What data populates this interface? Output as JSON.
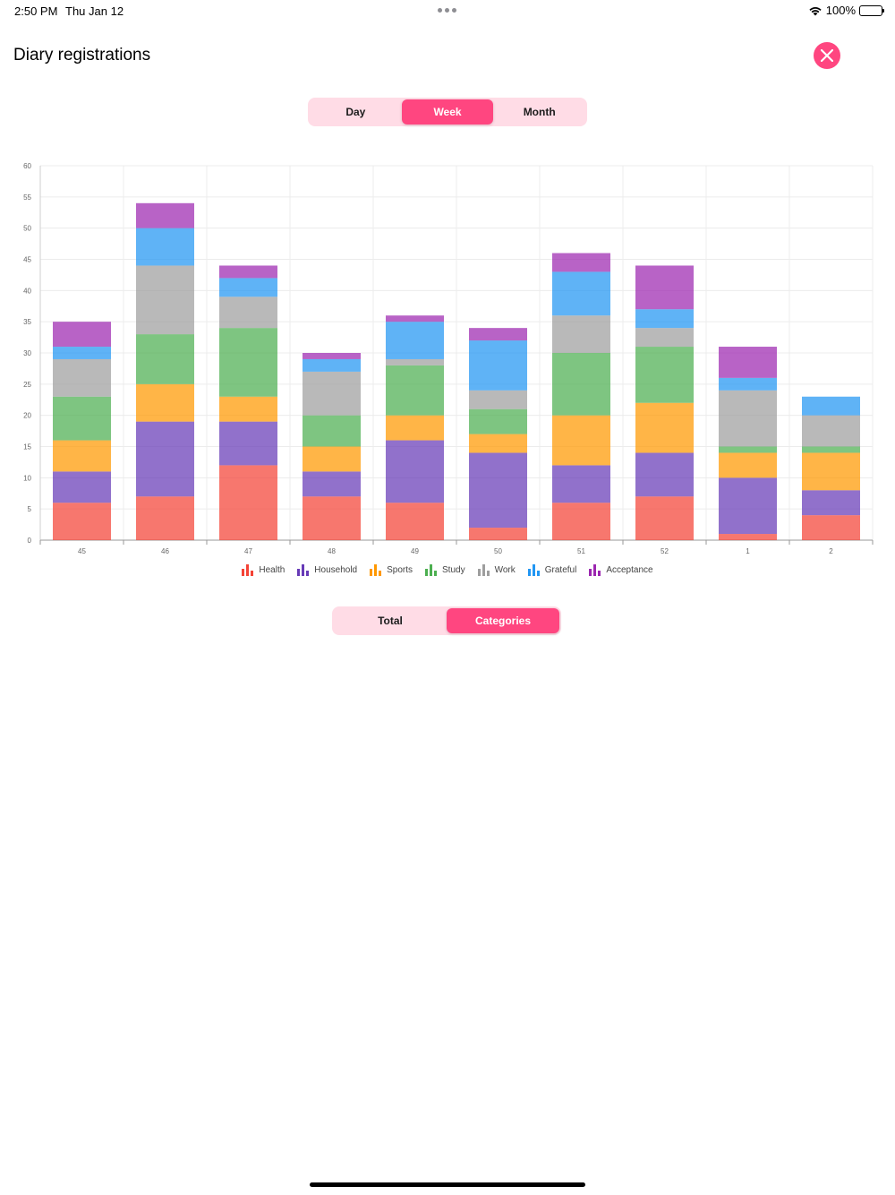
{
  "status_bar": {
    "time": "2:50 PM",
    "date": "Thu Jan 12",
    "battery": "100%"
  },
  "header": {
    "title": "Diary registrations"
  },
  "period_control": {
    "options": [
      "Day",
      "Week",
      "Month"
    ],
    "selected": "Week"
  },
  "view_control": {
    "options": [
      "Total",
      "Categories"
    ],
    "selected": "Categories"
  },
  "colors": {
    "accent": "#ff4680",
    "accent_light": "#ffdce6"
  },
  "chart_data": {
    "type": "bar",
    "stacked": true,
    "title": "",
    "xlabel": "",
    "ylabel": "",
    "ylim": [
      0,
      60
    ],
    "yticks": [
      0,
      5,
      10,
      15,
      20,
      25,
      30,
      35,
      40,
      45,
      50,
      55,
      60
    ],
    "grid": true,
    "legend_position": "bottom",
    "categories": [
      "45",
      "46",
      "47",
      "48",
      "49",
      "50",
      "51",
      "52",
      "1",
      "2"
    ],
    "series": [
      {
        "name": "Health",
        "color": "#f44336",
        "values": [
          6,
          7,
          12,
          7,
          6,
          2,
          6,
          7,
          1,
          4
        ]
      },
      {
        "name": "Household",
        "color": "#673ab7",
        "values": [
          5,
          12,
          7,
          4,
          10,
          12,
          6,
          7,
          9,
          4
        ]
      },
      {
        "name": "Sports",
        "color": "#ff9800",
        "values": [
          5,
          6,
          4,
          4,
          4,
          3,
          8,
          8,
          4,
          6
        ]
      },
      {
        "name": "Study",
        "color": "#4caf50",
        "values": [
          7,
          8,
          11,
          5,
          8,
          4,
          10,
          9,
          1,
          1
        ]
      },
      {
        "name": "Work",
        "color": "#9e9e9e",
        "values": [
          6,
          11,
          5,
          7,
          1,
          3,
          6,
          3,
          9,
          5
        ]
      },
      {
        "name": "Grateful",
        "color": "#2196f3",
        "values": [
          2,
          6,
          3,
          2,
          6,
          8,
          7,
          3,
          2,
          3
        ]
      },
      {
        "name": "Acceptance",
        "color": "#9c27b0",
        "values": [
          4,
          4,
          2,
          1,
          1,
          2,
          3,
          7,
          5,
          0
        ]
      }
    ]
  }
}
